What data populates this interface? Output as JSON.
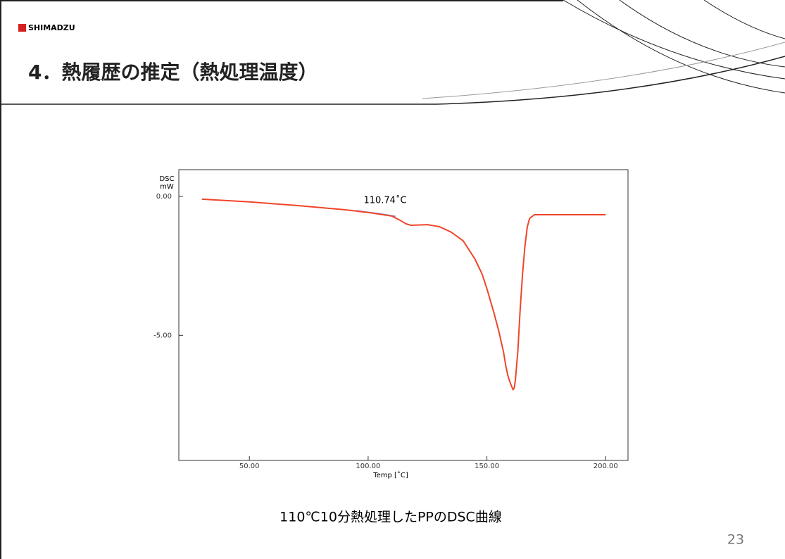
{
  "logo": "SHIMADZU",
  "title": "4．熱履歴の推定（熱処理温度）",
  "caption": "110℃10分熱処理したPPのDSC曲線",
  "page_number": "23",
  "chart_data": {
    "type": "line",
    "y_label_lines": [
      "DSC",
      "mW"
    ],
    "x_label": "Temp [˚C]",
    "annotation": "110.74˚C",
    "xlim": [
      20.3,
      209.4
    ],
    "ylim": [
      -9.5,
      0.96
    ],
    "xticks": [
      {
        "value": 50,
        "label": "50.00"
      },
      {
        "value": 100,
        "label": "100.00"
      },
      {
        "value": 150,
        "label": "150.00"
      },
      {
        "value": 200,
        "label": "200.00"
      }
    ],
    "yticks": [
      {
        "value": 0,
        "label": "0.00"
      },
      {
        "value": -5,
        "label": "-5.00"
      }
    ],
    "series": [
      {
        "color": "#f0452a",
        "x": [
          30,
          50,
          70,
          90,
          100,
          110,
          113,
          116,
          118,
          125,
          130,
          135,
          140,
          145,
          148,
          150,
          153,
          155,
          157,
          158,
          159,
          160,
          161,
          161.5,
          162,
          163,
          164,
          165,
          166,
          167,
          168,
          170,
          175,
          200
        ],
        "values": [
          -0.1,
          -0.2,
          -0.33,
          -0.48,
          -0.58,
          -0.71,
          -0.84,
          -0.99,
          -1.04,
          -1.02,
          -1.09,
          -1.29,
          -1.6,
          -2.26,
          -2.8,
          -3.32,
          -4.2,
          -4.85,
          -5.6,
          -6.12,
          -6.5,
          -6.75,
          -6.95,
          -6.9,
          -6.6,
          -5.6,
          -4.08,
          -2.8,
          -1.8,
          -1.1,
          -0.79,
          -0.66,
          -0.66,
          -0.66
        ]
      },
      {
        "color": "#6f8fc4",
        "x": [
          95,
          105,
          111.5
        ],
        "values": [
          -0.52,
          -0.63,
          -0.72
        ]
      }
    ]
  }
}
